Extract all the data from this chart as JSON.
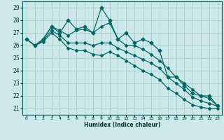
{
  "xlabel": "Humidex (Indice chaleur)",
  "xlim": [
    -0.5,
    23.5
  ],
  "ylim": [
    20.5,
    29.5
  ],
  "yticks": [
    21,
    22,
    23,
    24,
    25,
    26,
    27,
    28,
    29
  ],
  "xticks": [
    0,
    1,
    2,
    3,
    4,
    5,
    6,
    7,
    8,
    9,
    10,
    11,
    12,
    13,
    14,
    15,
    16,
    17,
    18,
    19,
    20,
    21,
    22,
    23
  ],
  "bg_color": "#cce8e8",
  "grid_color": "#aacccc",
  "line_color": "#006666",
  "series": [
    [
      26.5,
      26.0,
      26.5,
      27.5,
      27.0,
      28.0,
      27.3,
      27.5,
      27.0,
      29.0,
      28.0,
      26.5,
      27.0,
      26.2,
      26.5,
      26.2,
      25.6,
      23.5,
      23.5,
      22.8,
      22.2,
      22.0,
      22.0,
      21.2
    ],
    [
      26.5,
      26.0,
      26.5,
      27.5,
      27.2,
      26.8,
      27.2,
      27.3,
      27.0,
      27.5,
      27.8,
      26.5,
      26.0,
      26.0,
      25.7,
      25.3,
      24.8,
      24.2,
      23.5,
      23.0,
      22.5,
      22.0,
      21.8,
      21.2
    ],
    [
      26.5,
      26.0,
      26.4,
      27.2,
      26.8,
      26.2,
      26.2,
      26.2,
      26.0,
      26.2,
      26.2,
      25.8,
      25.5,
      25.2,
      24.9,
      24.6,
      24.2,
      23.5,
      23.0,
      22.5,
      21.9,
      21.6,
      21.4,
      21.2
    ],
    [
      26.5,
      26.0,
      26.3,
      27.0,
      26.5,
      25.8,
      25.6,
      25.6,
      25.3,
      25.2,
      25.5,
      25.2,
      24.8,
      24.4,
      24.0,
      23.7,
      23.3,
      22.6,
      22.2,
      21.7,
      21.3,
      21.1,
      21.0,
      21.0
    ]
  ]
}
